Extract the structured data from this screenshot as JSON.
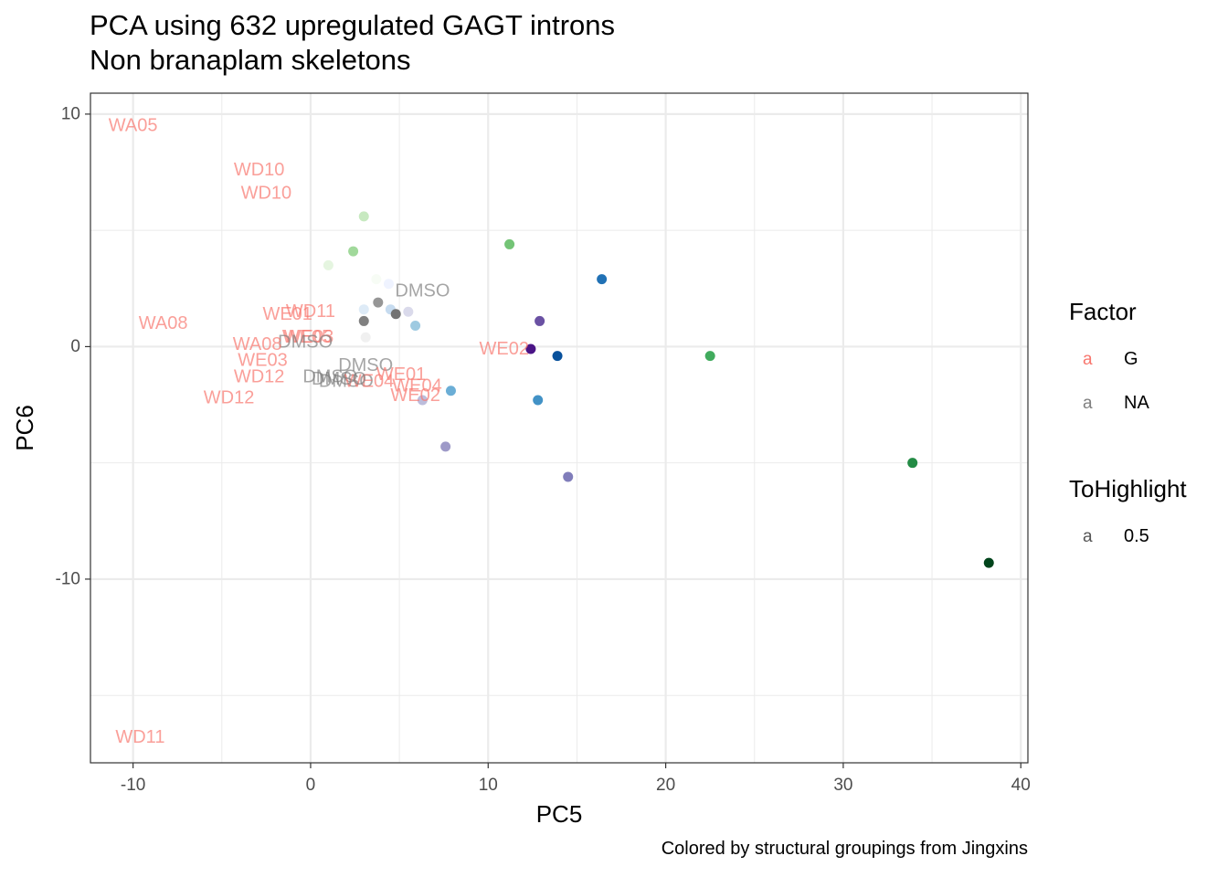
{
  "chart_data": {
    "type": "scatter",
    "title": "PCA using 632 upregulated GAGT introns",
    "subtitle": "Non branaplam skeletons",
    "caption": "Colored by structural groupings from Jingxins",
    "xlabel": "PC5",
    "ylabel": "PC6",
    "xlim": [
      -12.4,
      40.4
    ],
    "ylim": [
      -17.9,
      10.9
    ],
    "x_ticks": [
      -10,
      0,
      10,
      20,
      30,
      40
    ],
    "y_ticks": [
      10,
      0,
      -10
    ],
    "x_tick_labels": [
      "-10",
      "0",
      "10",
      "20",
      "30",
      "40"
    ],
    "y_tick_labels": [
      "10",
      "0",
      "-10"
    ],
    "grid": true,
    "points": [
      {
        "x": 3.0,
        "y": 5.6,
        "color": "#c7e9c0"
      },
      {
        "x": 2.4,
        "y": 4.1,
        "color": "#a1d99b"
      },
      {
        "x": 1.0,
        "y": 3.5,
        "color": "#e5f5e0"
      },
      {
        "x": 11.2,
        "y": 4.4,
        "color": "#74c476"
      },
      {
        "x": 16.4,
        "y": 2.9,
        "color": "#2171b5"
      },
      {
        "x": 3.7,
        "y": 2.9,
        "color": "#f7fcf5"
      },
      {
        "x": 4.4,
        "y": 2.7,
        "color": "#eff3ff"
      },
      {
        "x": 3.0,
        "y": 1.6,
        "color": "#deebf7"
      },
      {
        "x": 3.8,
        "y": 1.9,
        "color": "#969696"
      },
      {
        "x": 4.5,
        "y": 1.6,
        "color": "#c6dbef"
      },
      {
        "x": 5.5,
        "y": 1.5,
        "color": "#dadaeb"
      },
      {
        "x": 4.8,
        "y": 1.4,
        "color": "#737373"
      },
      {
        "x": 3.0,
        "y": 1.1,
        "color": "#808080"
      },
      {
        "x": 5.9,
        "y": 0.9,
        "color": "#9ecae1"
      },
      {
        "x": 12.9,
        "y": 1.1,
        "color": "#6a51a3"
      },
      {
        "x": 3.1,
        "y": 0.4,
        "color": "#f0f0f0"
      },
      {
        "x": 12.4,
        "y": -0.1,
        "color": "#4a1486"
      },
      {
        "x": 13.9,
        "y": -0.4,
        "color": "#08519c"
      },
      {
        "x": 22.5,
        "y": -0.4,
        "color": "#41ab5d"
      },
      {
        "x": 7.9,
        "y": -1.9,
        "color": "#6baed6"
      },
      {
        "x": 6.3,
        "y": -2.3,
        "color": "#bcbddc"
      },
      {
        "x": 12.8,
        "y": -2.3,
        "color": "#4292c6"
      },
      {
        "x": 7.6,
        "y": -4.3,
        "color": "#9e9ac8"
      },
      {
        "x": 14.5,
        "y": -5.6,
        "color": "#807dba"
      },
      {
        "x": 33.9,
        "y": -5.0,
        "color": "#238b45"
      },
      {
        "x": 38.2,
        "y": -9.3,
        "color": "#00441b"
      }
    ],
    "labels": [
      {
        "text": "WA05",
        "x": -10.0,
        "y": 9.5,
        "factor": "G"
      },
      {
        "text": "WD10",
        "x": -2.9,
        "y": 7.6,
        "factor": "G"
      },
      {
        "text": "WD10",
        "x": -2.5,
        "y": 6.6,
        "factor": "G"
      },
      {
        "text": "DMSO",
        "x": 6.3,
        "y": 2.4,
        "factor": "NA"
      },
      {
        "text": "WD11",
        "x": 0.0,
        "y": 1.5,
        "factor": "G"
      },
      {
        "text": "WE01",
        "x": -1.3,
        "y": 1.4,
        "factor": "G"
      },
      {
        "text": "WA08",
        "x": -8.3,
        "y": 1.0,
        "factor": "G"
      },
      {
        "text": "WE05",
        "x": -0.2,
        "y": 0.4,
        "factor": "G"
      },
      {
        "text": "WE03",
        "x": -0.1,
        "y": 0.4,
        "factor": "G"
      },
      {
        "text": "DMSO",
        "x": -0.3,
        "y": 0.2,
        "factor": "NA"
      },
      {
        "text": "WA08",
        "x": -3.0,
        "y": 0.1,
        "factor": "G"
      },
      {
        "text": "WE02",
        "x": 10.9,
        "y": -0.1,
        "factor": "G"
      },
      {
        "text": "WE03",
        "x": -2.7,
        "y": -0.6,
        "factor": "G"
      },
      {
        "text": "DMSO",
        "x": 3.1,
        "y": -0.8,
        "factor": "NA"
      },
      {
        "text": "WD12",
        "x": -2.9,
        "y": -1.3,
        "factor": "G"
      },
      {
        "text": "WE01",
        "x": 5.1,
        "y": -1.2,
        "factor": "G"
      },
      {
        "text": "DMSO",
        "x": 1.1,
        "y": -1.3,
        "factor": "NA"
      },
      {
        "text": "DMSO",
        "x": 2.0,
        "y": -1.5,
        "factor": "NA"
      },
      {
        "text": "WE04",
        "x": 3.3,
        "y": -1.5,
        "factor": "G"
      },
      {
        "text": "DMSO",
        "x": 1.6,
        "y": -1.4,
        "factor": "NA"
      },
      {
        "text": "WE04",
        "x": 6.0,
        "y": -1.7,
        "factor": "G"
      },
      {
        "text": "WE02",
        "x": 5.9,
        "y": -2.1,
        "factor": "G"
      },
      {
        "text": "WD12",
        "x": -4.6,
        "y": -2.2,
        "factor": "G"
      },
      {
        "text": "WD11",
        "x": -9.6,
        "y": -16.8,
        "factor": "G"
      }
    ],
    "factor_colors": {
      "G": "#f8766d",
      "NA": "#7f7f7f"
    },
    "label_alpha": 0.7,
    "legend": {
      "factor_title": "Factor",
      "factor_items": [
        {
          "key": "a",
          "label": "G",
          "color": "#f8766d"
        },
        {
          "key": "a",
          "label": "NA",
          "color": "#7f7f7f"
        }
      ],
      "highlight_title": "ToHighlight",
      "highlight_items": [
        {
          "key": "a",
          "label": "0.5",
          "color": "#555555"
        }
      ]
    }
  }
}
